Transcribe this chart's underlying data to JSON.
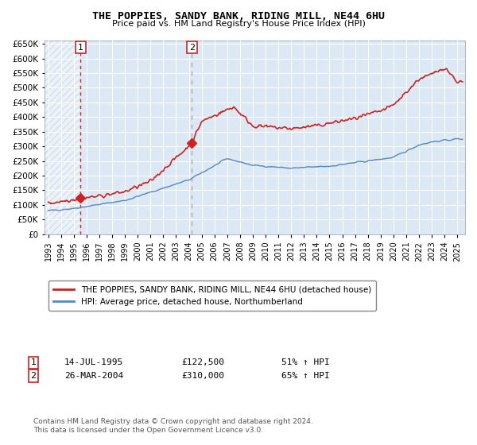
{
  "title": "THE POPPIES, SANDY BANK, RIDING MILL, NE44 6HU",
  "subtitle": "Price paid vs. HM Land Registry's House Price Index (HPI)",
  "legend_line1": "THE POPPIES, SANDY BANK, RIDING MILL, NE44 6HU (detached house)",
  "legend_line2": "HPI: Average price, detached house, Northumberland",
  "annotation1": {
    "label": "1",
    "date": "14-JUL-1995",
    "price": "£122,500",
    "pct": "51% ↑ HPI",
    "x_year": 1995.54
  },
  "annotation2": {
    "label": "2",
    "date": "26-MAR-2004",
    "price": "£310,000",
    "pct": "65% ↑ HPI",
    "x_year": 2004.23
  },
  "footnote": "Contains HM Land Registry data © Crown copyright and database right 2024.\nThis data is licensed under the Open Government Licence v3.0.",
  "hpi_color": "#5588bb",
  "price_color": "#cc2222",
  "dashed_vline1_color": "#cc2222",
  "dashed_vline2_color": "#aaaaaa",
  "background_color": "#dce9f5",
  "ylim": [
    0,
    660000
  ],
  "ytick_vals": [
    0,
    50000,
    100000,
    150000,
    200000,
    250000,
    300000,
    350000,
    400000,
    450000,
    500000,
    550000,
    600000,
    650000
  ],
  "ytick_labels": [
    "£0",
    "£50K",
    "£100K",
    "£150K",
    "£200K",
    "£250K",
    "£300K",
    "£350K",
    "£400K",
    "£450K",
    "£500K",
    "£550K",
    "£600K",
    "£650K"
  ],
  "xlim_start": 1992.7,
  "xlim_end": 2025.6,
  "sale1_price": 122500,
  "sale2_price": 310000
}
